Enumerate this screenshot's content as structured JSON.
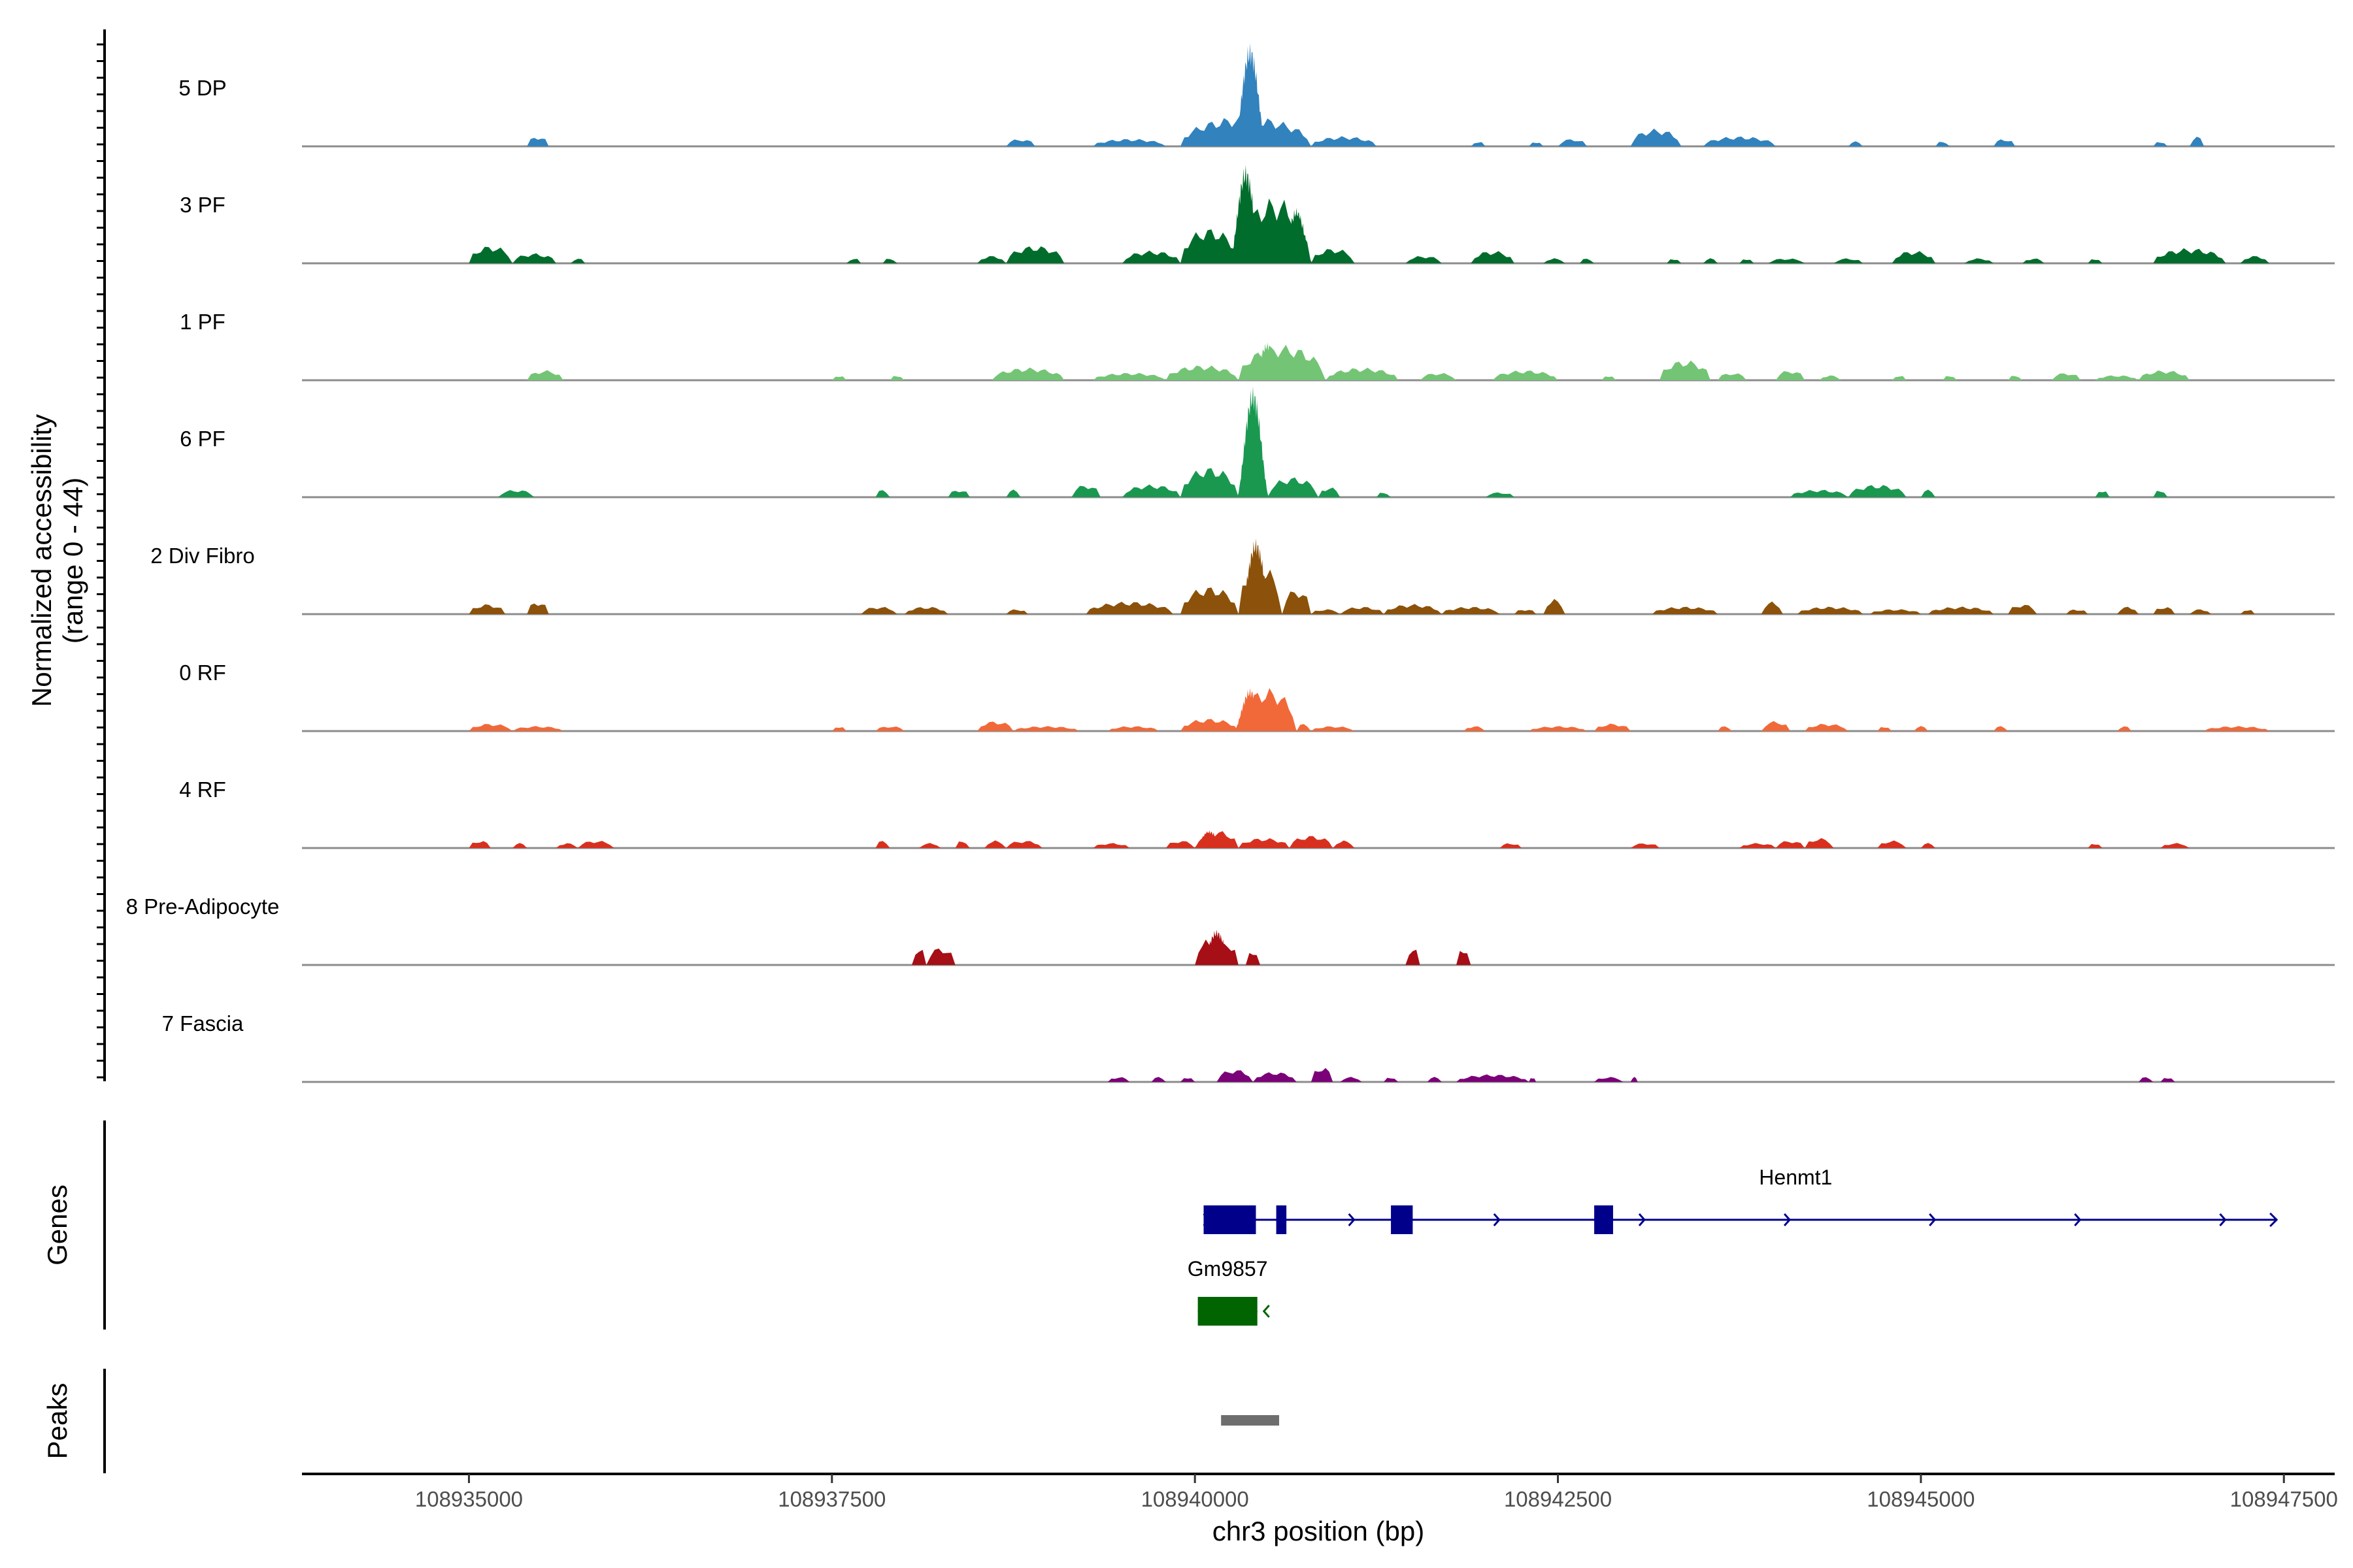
{
  "figure": {
    "y_axis_title_line1": "Normalized accessibility",
    "y_axis_title_line2": "(range 0 - 44)",
    "genes_axis_title": "Genes",
    "peaks_axis_title": "Peaks",
    "x_axis_title": "chr3 position (bp)"
  },
  "chart_data": {
    "type": "area",
    "title": "",
    "ylabel": "Normalized accessibility (range 0 - 44)",
    "xlabel": "chr3 position (bp)",
    "xlim": [
      108933850,
      108947850
    ],
    "ylim": [
      0,
      44
    ],
    "x_ticks": [
      108935000,
      108937500,
      108940000,
      108942500,
      108945000,
      108947500
    ],
    "x_tick_labels": [
      "108935000",
      "108937500",
      "108940000",
      "108942500",
      "108945000",
      "108947500"
    ],
    "coverage_tracks": [
      {
        "name": "5 DP",
        "color": "#3182bd",
        "regions": [
          [
            108935400,
            108935550,
            4
          ],
          [
            108938700,
            108938900,
            3
          ],
          [
            108939300,
            108939800,
            3
          ],
          [
            108939900,
            108940800,
            12
          ],
          [
            108940800,
            108941250,
            4
          ],
          [
            108941900,
            108942000,
            2
          ],
          [
            108942300,
            108942400,
            2
          ],
          [
            108942500,
            108942700,
            3
          ],
          [
            108943000,
            108943350,
            7
          ],
          [
            108943500,
            108944000,
            4
          ],
          [
            108944500,
            108944600,
            2
          ],
          [
            108945100,
            108945200,
            2
          ],
          [
            108945500,
            108945650,
            3
          ],
          [
            108946600,
            108946700,
            2
          ],
          [
            108946850,
            108946950,
            4
          ]
        ],
        "peaks": [
          [
            108940380,
            41
          ]
        ]
      },
      {
        "name": "3 PF",
        "color": "#006d2c",
        "regions": [
          [
            108935000,
            108935300,
            7
          ],
          [
            108935300,
            108935600,
            4
          ],
          [
            108935700,
            108935800,
            2
          ],
          [
            108937600,
            108937700,
            2
          ],
          [
            108937850,
            108937950,
            2
          ],
          [
            108938500,
            108938700,
            3
          ],
          [
            108938700,
            108939100,
            7
          ],
          [
            108939500,
            108939900,
            5
          ],
          [
            108939900,
            108940300,
            14
          ],
          [
            108940300,
            108940800,
            26
          ],
          [
            108940800,
            108941100,
            6
          ],
          [
            108941450,
            108941700,
            3
          ],
          [
            108941900,
            108942200,
            5
          ],
          [
            108942400,
            108942550,
            2
          ],
          [
            108942650,
            108942750,
            2
          ],
          [
            108943250,
            108943350,
            2
          ],
          [
            108943500,
            108943600,
            2
          ],
          [
            108943750,
            108943850,
            2
          ],
          [
            108943950,
            108944200,
            2
          ],
          [
            108944400,
            108944600,
            2
          ],
          [
            108944800,
            108945100,
            5
          ],
          [
            108945300,
            108945500,
            2
          ],
          [
            108945700,
            108945850,
            2
          ],
          [
            108946150,
            108946250,
            2
          ],
          [
            108946600,
            108947100,
            6
          ],
          [
            108947200,
            108947400,
            3
          ]
        ],
        "peaks": [
          [
            108940350,
            39
          ],
          [
            108940700,
            22
          ]
        ]
      },
      {
        "name": "1 PF",
        "color": "#74c476",
        "regions": [
          [
            108935400,
            108935650,
            4
          ],
          [
            108937500,
            108937600,
            2
          ],
          [
            108937900,
            108938000,
            2
          ],
          [
            108938600,
            108939100,
            5
          ],
          [
            108939300,
            108939800,
            3
          ],
          [
            108939800,
            108940300,
            6
          ],
          [
            108940300,
            108940900,
            14
          ],
          [
            108940900,
            108941400,
            5
          ],
          [
            108941550,
            108941800,
            3
          ],
          [
            108942050,
            108942500,
            4
          ],
          [
            108942800,
            108942900,
            2
          ],
          [
            108943200,
            108943550,
            8
          ],
          [
            108943600,
            108943800,
            3
          ],
          [
            108944000,
            108944200,
            4
          ],
          [
            108944300,
            108944450,
            2
          ],
          [
            108944800,
            108944900,
            2
          ],
          [
            108945150,
            108945250,
            2
          ],
          [
            108945600,
            108945700,
            2
          ],
          [
            108945900,
            108946100,
            3
          ],
          [
            108946200,
            108946500,
            2
          ],
          [
            108946500,
            108946850,
            4
          ]
        ],
        "peaks": [
          [
            108940500,
            15
          ]
        ]
      },
      {
        "name": "6 PF",
        "color": "#1a9850",
        "regions": [
          [
            108935200,
            108935450,
            3
          ],
          [
            108937800,
            108937900,
            3
          ],
          [
            108938300,
            108938450,
            3
          ],
          [
            108938700,
            108938800,
            3
          ],
          [
            108939150,
            108939350,
            5
          ],
          [
            108939500,
            108939900,
            5
          ],
          [
            108939900,
            108940300,
            12
          ],
          [
            108940300,
            108940500,
            14
          ],
          [
            108940500,
            108940850,
            8
          ],
          [
            108940850,
            108941000,
            4
          ],
          [
            108941250,
            108941350,
            2
          ],
          [
            108942000,
            108942200,
            2
          ],
          [
            108944100,
            108944500,
            3
          ],
          [
            108944500,
            108944900,
            5
          ],
          [
            108945000,
            108945100,
            3
          ],
          [
            108946200,
            108946300,
            3
          ],
          [
            108946600,
            108946700,
            3
          ]
        ],
        "peaks": [
          [
            108940400,
            44
          ]
        ]
      },
      {
        "name": "2 Div Fibro",
        "color": "#8c510a",
        "regions": [
          [
            108935000,
            108935250,
            4
          ],
          [
            108935400,
            108935550,
            5
          ],
          [
            108937700,
            108937950,
            3
          ],
          [
            108938000,
            108938300,
            3
          ],
          [
            108938700,
            108938850,
            2
          ],
          [
            108939250,
            108939850,
            5
          ],
          [
            108939900,
            108940300,
            11
          ],
          [
            108940300,
            108940600,
            20
          ],
          [
            108940600,
            108940800,
            10
          ],
          [
            108940800,
            108941000,
            2
          ],
          [
            108941000,
            108941300,
            3
          ],
          [
            108941300,
            108941700,
            4
          ],
          [
            108941700,
            108942100,
            3
          ],
          [
            108942200,
            108942350,
            2
          ],
          [
            108942400,
            108942550,
            6
          ],
          [
            108943150,
            108943600,
            3
          ],
          [
            108943900,
            108944050,
            5
          ],
          [
            108944150,
            108944600,
            3
          ],
          [
            108944650,
            108945000,
            2
          ],
          [
            108945050,
            108945500,
            3
          ],
          [
            108945600,
            108945800,
            4
          ],
          [
            108946000,
            108946150,
            2
          ],
          [
            108946350,
            108946500,
            3
          ],
          [
            108946600,
            108946750,
            3
          ],
          [
            108946850,
            108947000,
            2
          ],
          [
            108947200,
            108947300,
            2
          ]
        ],
        "peaks": [
          [
            108940420,
            30
          ]
        ]
      },
      {
        "name": "0 RF",
        "color": "#f16939",
        "regions": [
          [
            108935000,
            108935300,
            3
          ],
          [
            108935300,
            108935650,
            2
          ],
          [
            108937500,
            108937600,
            2
          ],
          [
            108937800,
            108938000,
            2
          ],
          [
            108938500,
            108938750,
            4
          ],
          [
            108938750,
            108939200,
            2
          ],
          [
            108939400,
            108939750,
            2
          ],
          [
            108939900,
            108940300,
            5
          ],
          [
            108940300,
            108940700,
            17
          ],
          [
            108940700,
            108940800,
            3
          ],
          [
            108940800,
            108941100,
            2
          ],
          [
            108941850,
            108942000,
            2
          ],
          [
            108942300,
            108942700,
            2
          ],
          [
            108942750,
            108943000,
            3
          ],
          [
            108943600,
            108943700,
            2
          ],
          [
            108943900,
            108944100,
            4
          ],
          [
            108944200,
            108944500,
            3
          ],
          [
            108944700,
            108944800,
            2
          ],
          [
            108944950,
            108945050,
            2
          ],
          [
            108945500,
            108945600,
            2
          ],
          [
            108946350,
            108946450,
            2
          ],
          [
            108946950,
            108947400,
            2
          ]
        ],
        "peaks": [
          [
            108940380,
            17
          ]
        ]
      },
      {
        "name": "4 RF",
        "color": "#d7301f",
        "regions": [
          [
            108935000,
            108935150,
            3
          ],
          [
            108935300,
            108935400,
            2
          ],
          [
            108935600,
            108935750,
            2
          ],
          [
            108935750,
            108936000,
            3
          ],
          [
            108937800,
            108937900,
            3
          ],
          [
            108938100,
            108938250,
            2
          ],
          [
            108938350,
            108938450,
            3
          ],
          [
            108938550,
            108938700,
            3
          ],
          [
            108938700,
            108938950,
            3
          ],
          [
            108939300,
            108939550,
            2
          ],
          [
            108939800,
            108940000,
            3
          ],
          [
            108940000,
            108940300,
            7
          ],
          [
            108940300,
            108940650,
            4
          ],
          [
            108940650,
            108940950,
            5
          ],
          [
            108940950,
            108941100,
            3
          ],
          [
            108942100,
            108942250,
            2
          ],
          [
            108943000,
            108943200,
            2
          ],
          [
            108943750,
            108944000,
            2
          ],
          [
            108944000,
            108944200,
            3
          ],
          [
            108944200,
            108944400,
            4
          ],
          [
            108944700,
            108944900,
            3
          ],
          [
            108945000,
            108945100,
            2
          ],
          [
            108946150,
            108946250,
            2
          ],
          [
            108946650,
            108946850,
            2
          ]
        ],
        "peaks": [
          [
            108940100,
            7
          ]
        ]
      },
      {
        "name": "8 Pre-Adipocyte",
        "color": "#a50f15",
        "regions": [
          [
            108938050,
            108938150,
            7
          ],
          [
            108938150,
            108938350,
            7
          ],
          [
            108940000,
            108940150,
            10
          ],
          [
            108940150,
            108940300,
            9
          ],
          [
            108940350,
            108940450,
            6
          ],
          [
            108941450,
            108941550,
            7
          ],
          [
            108941800,
            108941900,
            7
          ]
        ],
        "peaks": [
          [
            108940150,
            14
          ]
        ]
      },
      {
        "name": "7 Fascia",
        "color": "#7a0177",
        "regions": [
          [
            108939400,
            108939550,
            2
          ],
          [
            108939700,
            108939800,
            2
          ],
          [
            108939900,
            108940000,
            2
          ],
          [
            108940150,
            108940400,
            5
          ],
          [
            108940400,
            108940700,
            4
          ],
          [
            108940800,
            108940950,
            6
          ],
          [
            108941000,
            108941150,
            2
          ],
          [
            108941300,
            108941400,
            2
          ],
          [
            108941600,
            108941700,
            2
          ],
          [
            108941800,
            108942300,
            3
          ],
          [
            108942300,
            108942350,
            2
          ],
          [
            108942750,
            108942950,
            2
          ],
          [
            108943000,
            108943050,
            2
          ],
          [
            108946500,
            108946600,
            2
          ],
          [
            108946650,
            108946750,
            2
          ]
        ],
        "peaks": []
      }
    ],
    "genes": [
      {
        "name": "Henmt1",
        "color": "#00008b",
        "strand": "+",
        "start": 108940060,
        "end": 108947450,
        "exons": [
          [
            108940060,
            108940420
          ],
          [
            108940560,
            108940630
          ],
          [
            108941350,
            108941500
          ],
          [
            108942750,
            108942880
          ]
        ]
      },
      {
        "name": "Gm9857",
        "color": "#006400",
        "strand": "-",
        "start": 108940020,
        "end": 108940430,
        "exons": [
          [
            108940020,
            108940430
          ]
        ]
      }
    ],
    "peak_regions": [
      [
        108940180,
        108940580
      ]
    ]
  }
}
